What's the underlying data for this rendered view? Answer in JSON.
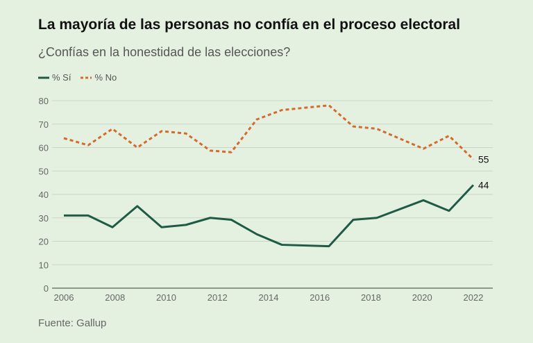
{
  "title": "La mayoría de las personas no confía en el proceso electoral",
  "subtitle": "¿Confías en la honestidad de las elecciones?",
  "source": "Fuente: Gallup",
  "chart_data": {
    "type": "line",
    "title": "La mayoría de las personas no confía en el proceso electoral",
    "subtitle": "¿Confías en la honestidad de las elecciones?",
    "xlabel": "",
    "ylabel": "",
    "xlim": [
      2006,
      2022
    ],
    "ylim": [
      0,
      80
    ],
    "xticks": [
      "2006",
      "2008",
      "2010",
      "2012",
      "2014",
      "2016",
      "2018",
      "2020",
      "2022"
    ],
    "yticks": [
      "0",
      "10",
      "20",
      "30",
      "40",
      "50",
      "60",
      "70",
      "80"
    ],
    "grid": true,
    "legend_position": "top-left",
    "series": [
      {
        "name": "% Sí",
        "color": "#1f5a45",
        "style": "solid",
        "x": [
          2006,
          2006.95,
          2007.9,
          2008.87,
          2009.82,
          2010.77,
          2011.72,
          2012.54,
          2013.54,
          2014.52,
          2016.36,
          2017.31,
          2018.23,
          2020.05,
          2021.05,
          2022
        ],
        "values": [
          31,
          31,
          26,
          35,
          26,
          27,
          30,
          29.2,
          23,
          18.5,
          17.9,
          29.2,
          30,
          37.5,
          33,
          44
        ],
        "end_label": "44"
      },
      {
        "name": "% No",
        "color": "#d46a2e",
        "style": "dashed",
        "x": [
          2006,
          2006.95,
          2007.9,
          2008.87,
          2009.82,
          2010.77,
          2011.72,
          2012.54,
          2013.54,
          2014.52,
          2016.36,
          2017.31,
          2018.23,
          2020.05,
          2021.05,
          2022
        ],
        "values": [
          64,
          61,
          68,
          60,
          67,
          66,
          58.7,
          58,
          72,
          76,
          78,
          69,
          68,
          59.5,
          65,
          55
        ],
        "end_label": "55"
      }
    ]
  }
}
